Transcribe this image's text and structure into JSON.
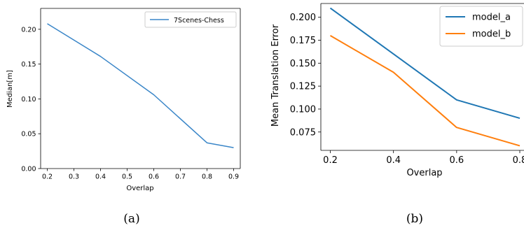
{
  "chart_data": [
    {
      "type": "line",
      "caption": "(a)",
      "xlabel": "Overlap",
      "ylabel": "Median[m]",
      "xlim": [
        0.175,
        0.925
      ],
      "ylim": [
        0,
        0.23
      ],
      "xticks": [
        "0.2",
        "0.3",
        "0.4",
        "0.5",
        "0.6",
        "0.7",
        "0.8",
        "0.9"
      ],
      "yticks": [
        "0.00",
        "0.05",
        "0.10",
        "0.15",
        "0.20"
      ],
      "x": [
        0.2,
        0.4,
        0.6,
        0.8,
        0.9
      ],
      "series": [
        {
          "name": "7Scenes-Chess",
          "color": "#3a86c8",
          "values": [
            0.208,
            0.161,
            0.106,
            0.037,
            0.03
          ]
        }
      ],
      "legend": "top-right",
      "grid": false
    },
    {
      "type": "line",
      "caption": "(b)",
      "xlabel": "Overlap",
      "ylabel": "Mean Translation Error",
      "xlim": [
        0.17,
        0.8
      ],
      "ylim": [
        0.055,
        0.215
      ],
      "xticks": [
        "0.2",
        "0.4",
        "0.6",
        "0.8"
      ],
      "yticks": [
        "0.075",
        "0.100",
        "0.125",
        "0.150",
        "0.175",
        "0.200"
      ],
      "x": [
        0.2,
        0.4,
        0.6,
        0.8
      ],
      "series": [
        {
          "name": "model_a",
          "color": "#1f77b4",
          "values": [
            0.21,
            0.16,
            0.11,
            0.09
          ]
        },
        {
          "name": "model_b",
          "color": "#ff7f0e",
          "values": [
            0.18,
            0.14,
            0.08,
            0.06
          ]
        }
      ],
      "legend": "top-right",
      "grid": false
    }
  ]
}
